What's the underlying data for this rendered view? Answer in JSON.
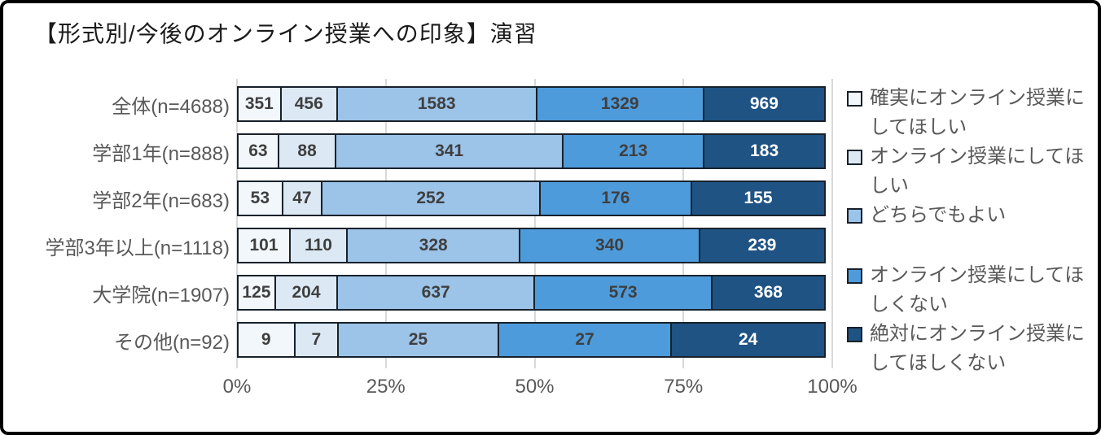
{
  "chart_data": {
    "type": "bar",
    "variant": "horizontal-stacked-100pct",
    "title": "【形式別/今後のオンライン授業への印象】演習",
    "categories": [
      "全体(n=4688)",
      "学部1年(n=888)",
      "学部2年(n=683)",
      "学部3年以上(n=1118)",
      "大学院(n=1907)",
      "その他(n=92)"
    ],
    "series": [
      {
        "name": "確実にオンライン授業にしてほしい",
        "color": "#f1f7fb",
        "label_color": "#3f3f3f",
        "values": [
          351,
          63,
          53,
          101,
          125,
          9
        ]
      },
      {
        "name": "オンライン授業にしてほしい",
        "color": "#dce9f5",
        "label_color": "#3f3f3f",
        "values": [
          456,
          88,
          47,
          110,
          204,
          7
        ]
      },
      {
        "name": "どちらでもよい",
        "color": "#9cc3e8",
        "label_color": "#3f3f3f",
        "values": [
          1583,
          341,
          252,
          328,
          637,
          25
        ]
      },
      {
        "name": "オンライン授業にしてほしくない",
        "color": "#4e9bdb",
        "label_color": "#3f3f3f",
        "values": [
          1329,
          213,
          176,
          340,
          573,
          27
        ]
      },
      {
        "name": "絶対にオンライン授業にしてほしくない",
        "color": "#1e5384",
        "label_color": "#ffffff",
        "values": [
          969,
          183,
          155,
          239,
          368,
          24
        ]
      }
    ],
    "x_ticks": [
      "0%",
      "25%",
      "50%",
      "75%",
      "100%"
    ],
    "xlim": [
      0,
      100
    ],
    "grid": true,
    "legend_position": "right",
    "palette": {
      "segment_border": "#17212b",
      "gridline": "#d9d9d9",
      "axis_text": "#595959",
      "category_text": "#595959",
      "title_text": "#1a1a1a",
      "frame_border": "#000000",
      "background": "#ffffff"
    }
  }
}
